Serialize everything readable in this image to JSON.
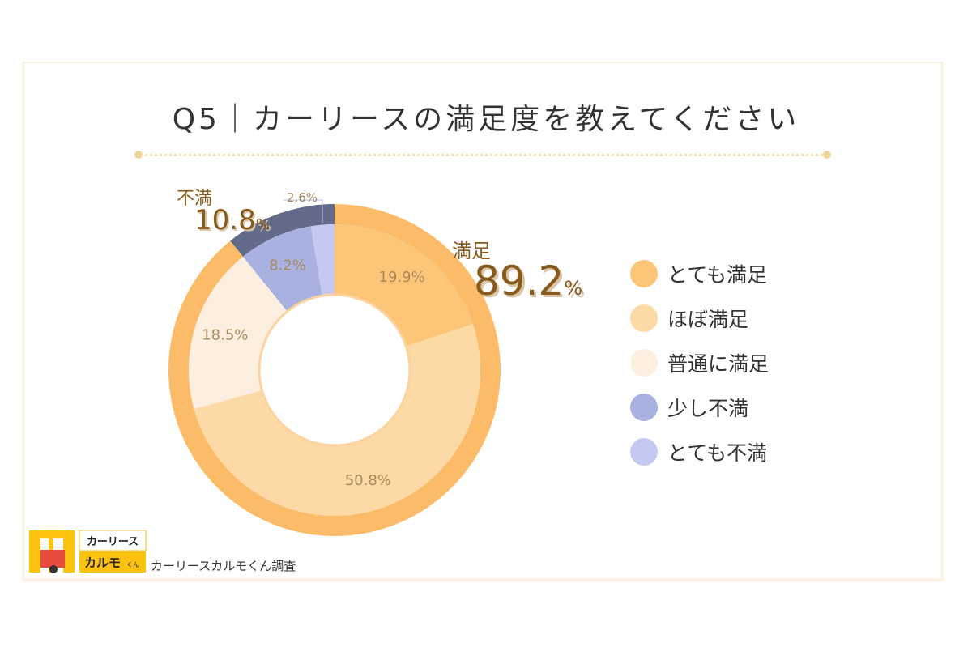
{
  "chart_data": {
    "type": "pie",
    "title": "Q5｜カーリースの満足度を教えてください",
    "categories": [
      "とても満足",
      "ほぼ満足",
      "普通に満足",
      "少し不満",
      "とても不満"
    ],
    "values": [
      19.9,
      50.8,
      18.5,
      8.2,
      2.6
    ],
    "value_labels": [
      "19.9%",
      "50.8%",
      "18.5%",
      "8.2%",
      "2.6%"
    ],
    "colors": [
      "#fdc577",
      "#fdd9a5",
      "#fdefdf",
      "#a8b1df",
      "#c3c9f1"
    ],
    "outer_ring": {
      "categories": [
        "満足",
        "不満"
      ],
      "values": [
        89.2,
        10.8
      ],
      "colors": [
        "#fcbb68",
        "#636b8b"
      ],
      "labels": [
        {
          "name": "満足",
          "value": "89.2",
          "unit": "%"
        },
        {
          "name": "不満",
          "value": "10.8",
          "unit": "%"
        }
      ]
    },
    "legend_placement": "right"
  },
  "footer": {
    "logo_top": "カーリース",
    "logo_bottom": "カルモ",
    "logo_small": "くん",
    "credit": "カーリースカルモくん調査"
  }
}
